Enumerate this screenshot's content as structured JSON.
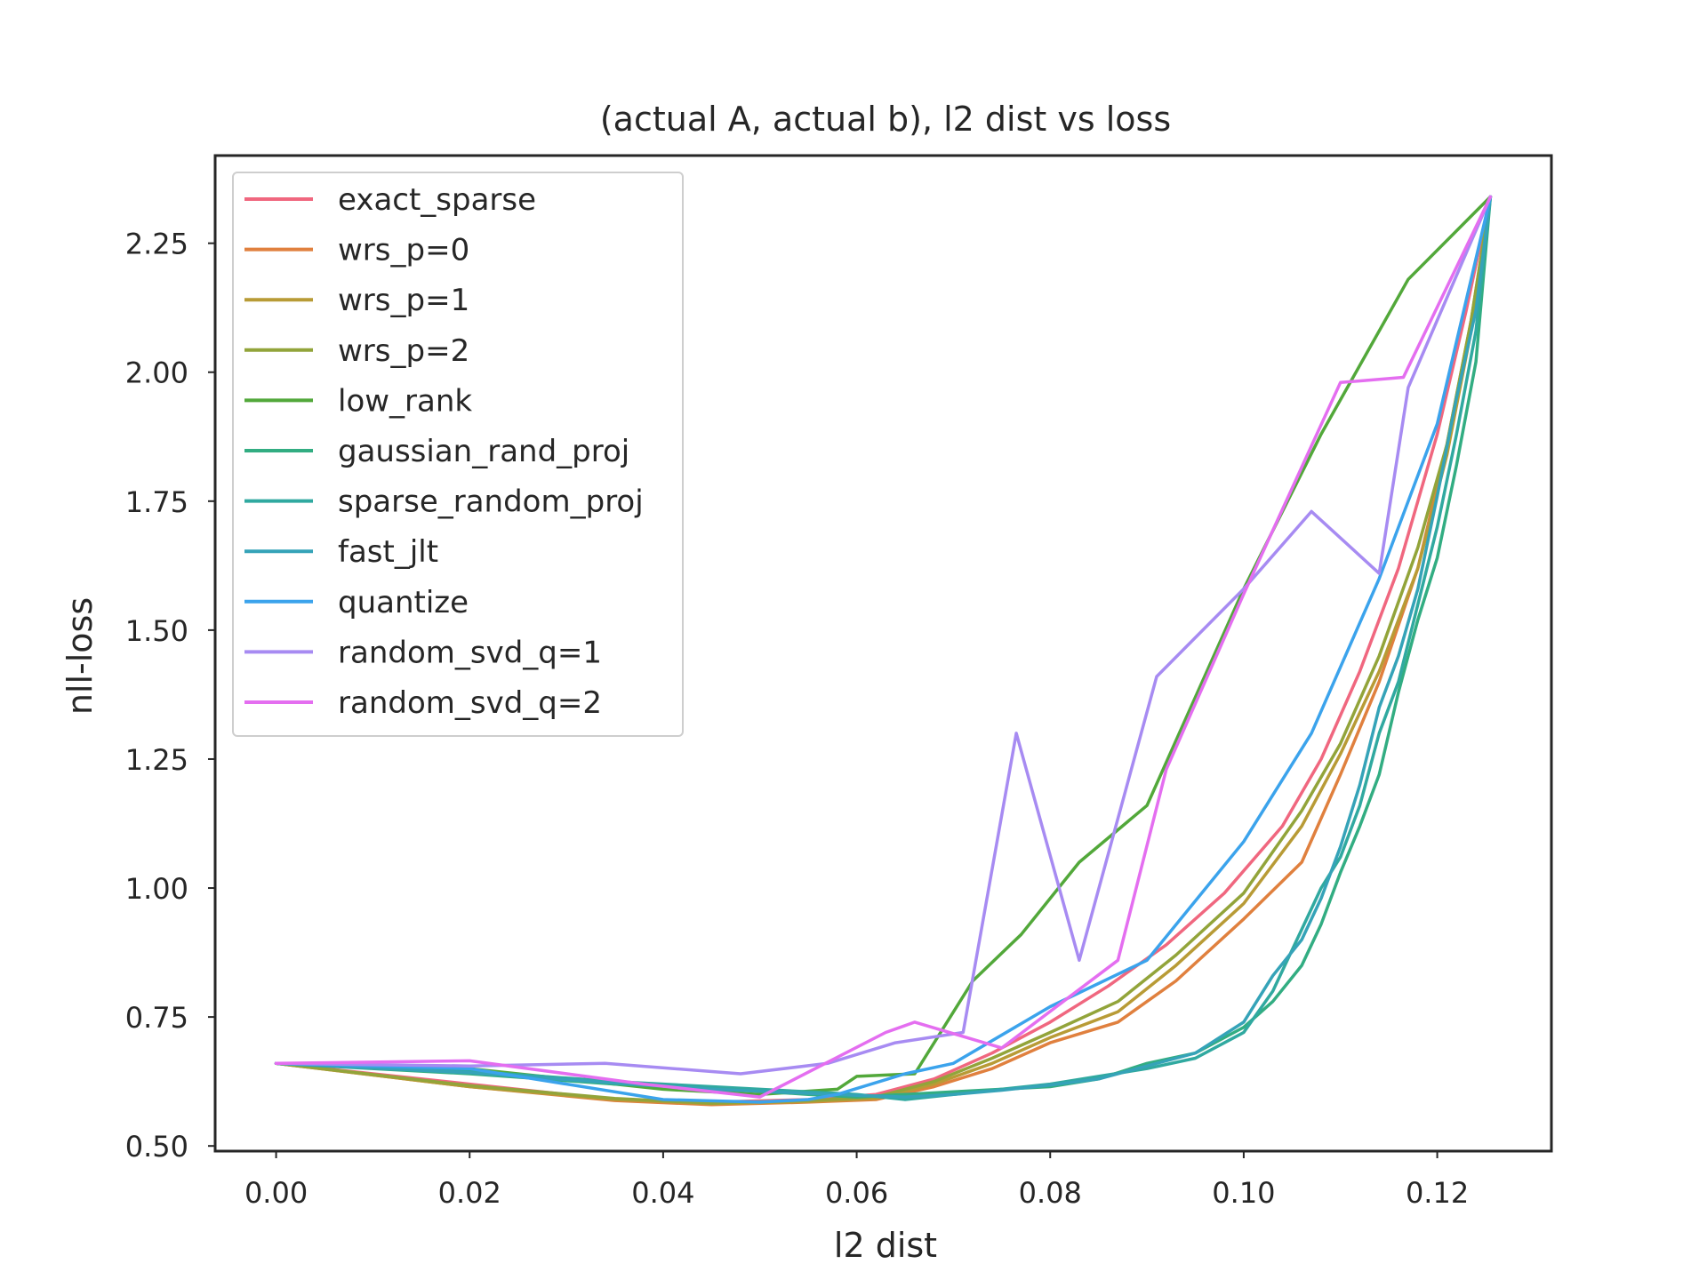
{
  "chart_data": {
    "type": "line",
    "title": "(actual A, actual b), l2 dist vs loss",
    "xlabel": "l2 dist",
    "ylabel": "nll-loss",
    "xlim": [
      -0.0063,
      0.1318
    ],
    "ylim": [
      0.49,
      2.42
    ],
    "xticks": [
      "0.00",
      "0.02",
      "0.04",
      "0.06",
      "0.08",
      "0.10",
      "0.12"
    ],
    "yticks": [
      "0.50",
      "0.75",
      "1.00",
      "1.25",
      "1.50",
      "1.75",
      "2.00",
      "2.25"
    ],
    "grid": false,
    "legend_position": "top-left",
    "series": [
      {
        "name": "exact_sparse",
        "color": "#f0677f",
        "x": [
          0,
          0.02,
          0.035,
          0.045,
          0.055,
          0.062,
          0.068,
          0.074,
          0.08,
          0.086,
          0.092,
          0.098,
          0.104,
          0.108,
          0.112,
          0.116,
          0.12,
          0.123,
          0.1255
        ],
        "y": [
          0.66,
          0.62,
          0.59,
          0.585,
          0.59,
          0.6,
          0.63,
          0.68,
          0.74,
          0.81,
          0.89,
          0.99,
          1.12,
          1.25,
          1.42,
          1.62,
          1.88,
          2.12,
          2.34
        ]
      },
      {
        "name": "wrs_p=0",
        "color": "#e0803e",
        "x": [
          0,
          0.02,
          0.035,
          0.045,
          0.055,
          0.062,
          0.068,
          0.074,
          0.08,
          0.087,
          0.093,
          0.1,
          0.106,
          0.11,
          0.114,
          0.118,
          0.121,
          0.1235,
          0.1255
        ],
        "y": [
          0.66,
          0.615,
          0.588,
          0.58,
          0.585,
          0.59,
          0.615,
          0.65,
          0.7,
          0.74,
          0.82,
          0.94,
          1.05,
          1.22,
          1.4,
          1.62,
          1.86,
          2.1,
          2.34
        ]
      },
      {
        "name": "wrs_p=1",
        "color": "#b89b36",
        "x": [
          0,
          0.02,
          0.035,
          0.045,
          0.055,
          0.062,
          0.068,
          0.074,
          0.08,
          0.087,
          0.093,
          0.1,
          0.106,
          0.11,
          0.114,
          0.118,
          0.121,
          0.1235,
          0.1255
        ],
        "y": [
          0.66,
          0.615,
          0.59,
          0.582,
          0.586,
          0.592,
          0.62,
          0.66,
          0.71,
          0.76,
          0.85,
          0.97,
          1.12,
          1.26,
          1.42,
          1.62,
          1.84,
          2.08,
          2.34
        ]
      },
      {
        "name": "wrs_p=2",
        "color": "#92a43a",
        "x": [
          0,
          0.02,
          0.035,
          0.045,
          0.055,
          0.062,
          0.068,
          0.074,
          0.08,
          0.087,
          0.093,
          0.1,
          0.106,
          0.11,
          0.114,
          0.118,
          0.121,
          0.1235,
          0.1255
        ],
        "y": [
          0.66,
          0.617,
          0.592,
          0.583,
          0.588,
          0.595,
          0.625,
          0.67,
          0.72,
          0.78,
          0.87,
          0.99,
          1.15,
          1.28,
          1.45,
          1.66,
          1.86,
          2.1,
          2.34
        ]
      },
      {
        "name": "low_rank",
        "color": "#52a83a",
        "x": [
          0,
          0.02,
          0.04,
          0.05,
          0.058,
          0.06,
          0.066,
          0.072,
          0.077,
          0.083,
          0.09,
          0.1,
          0.108,
          0.117,
          0.1255
        ],
        "y": [
          0.66,
          0.65,
          0.61,
          0.6,
          0.61,
          0.635,
          0.64,
          0.82,
          0.91,
          1.05,
          1.16,
          1.58,
          1.88,
          2.18,
          2.34
        ]
      },
      {
        "name": "gaussian_rand_proj",
        "color": "#32ad82",
        "x": [
          0,
          0.02,
          0.035,
          0.045,
          0.055,
          0.06,
          0.065,
          0.07,
          0.075,
          0.08,
          0.085,
          0.09,
          0.095,
          0.1,
          0.103,
          0.106,
          0.108,
          0.11,
          0.112,
          0.114,
          0.116,
          0.118,
          0.12,
          0.122,
          0.124,
          0.1255
        ],
        "y": [
          0.66,
          0.64,
          0.62,
          0.612,
          0.6,
          0.595,
          0.6,
          0.605,
          0.61,
          0.615,
          0.63,
          0.66,
          0.68,
          0.73,
          0.78,
          0.85,
          0.93,
          1.03,
          1.12,
          1.22,
          1.38,
          1.52,
          1.64,
          1.82,
          2.02,
          2.34
        ]
      },
      {
        "name": "sparse_random_proj",
        "color": "#30a9a0",
        "x": [
          0,
          0.02,
          0.035,
          0.045,
          0.055,
          0.06,
          0.065,
          0.07,
          0.075,
          0.08,
          0.085,
          0.09,
          0.095,
          0.1,
          0.103,
          0.106,
          0.108,
          0.11,
          0.112,
          0.114,
          0.116,
          0.118,
          0.12,
          0.122,
          0.124,
          0.1255
        ],
        "y": [
          0.66,
          0.645,
          0.625,
          0.615,
          0.605,
          0.6,
          0.59,
          0.6,
          0.61,
          0.62,
          0.635,
          0.65,
          0.67,
          0.72,
          0.8,
          0.92,
          1.0,
          1.06,
          1.16,
          1.3,
          1.4,
          1.55,
          1.7,
          1.88,
          2.08,
          2.34
        ]
      },
      {
        "name": "fast_jlt",
        "color": "#35a3b8",
        "x": [
          0,
          0.02,
          0.035,
          0.045,
          0.055,
          0.06,
          0.065,
          0.07,
          0.075,
          0.08,
          0.085,
          0.09,
          0.095,
          0.1,
          0.103,
          0.106,
          0.108,
          0.11,
          0.112,
          0.114,
          0.116,
          0.118,
          0.12,
          0.122,
          0.124,
          0.1255
        ],
        "y": [
          0.66,
          0.642,
          0.622,
          0.61,
          0.602,
          0.598,
          0.595,
          0.6,
          0.608,
          0.618,
          0.63,
          0.655,
          0.68,
          0.74,
          0.83,
          0.9,
          0.98,
          1.08,
          1.2,
          1.35,
          1.45,
          1.58,
          1.76,
          1.95,
          2.12,
          2.34
        ]
      },
      {
        "name": "quantize",
        "color": "#3ba3ec",
        "x": [
          0,
          0.02,
          0.04,
          0.05,
          0.055,
          0.058,
          0.065,
          0.07,
          0.08,
          0.09,
          0.1,
          0.107,
          0.114,
          0.12,
          0.1255
        ],
        "y": [
          0.66,
          0.65,
          0.59,
          0.585,
          0.59,
          0.6,
          0.64,
          0.66,
          0.77,
          0.86,
          1.09,
          1.3,
          1.6,
          1.9,
          2.34
        ]
      },
      {
        "name": "random_svd_q=1",
        "color": "#a78bf2",
        "x": [
          0,
          0.02,
          0.034,
          0.048,
          0.057,
          0.064,
          0.071,
          0.0765,
          0.083,
          0.091,
          0.1,
          0.107,
          0.114,
          0.117,
          0.1255
        ],
        "y": [
          0.66,
          0.655,
          0.66,
          0.64,
          0.66,
          0.7,
          0.72,
          1.3,
          0.86,
          1.41,
          1.58,
          1.73,
          1.61,
          1.97,
          2.34
        ]
      },
      {
        "name": "random_svd_q=2",
        "color": "#e46ef0",
        "x": [
          0,
          0.02,
          0.038,
          0.05,
          0.063,
          0.066,
          0.075,
          0.087,
          0.092,
          0.1,
          0.11,
          0.1165,
          0.1255
        ],
        "y": [
          0.66,
          0.665,
          0.62,
          0.595,
          0.72,
          0.74,
          0.69,
          0.86,
          1.23,
          1.57,
          1.98,
          1.99,
          2.34
        ]
      }
    ]
  }
}
